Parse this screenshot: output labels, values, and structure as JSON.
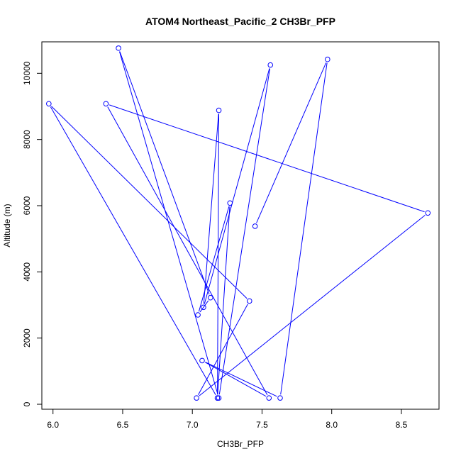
{
  "chart_data": {
    "type": "line",
    "title": "ATOM4 Northeast_Pacific_2 CH3Br_PFP",
    "xlabel": "CH3Br_PFP",
    "ylabel": "Altitude (m)",
    "xlim": [
      5.92,
      8.77
    ],
    "ylim": [
      -150,
      10950
    ],
    "xticks": [
      "6.0",
      "6.5",
      "7.0",
      "7.5",
      "8.0",
      "8.5"
    ],
    "yticks": [
      "0",
      "2000",
      "4000",
      "6000",
      "8000",
      "10000"
    ],
    "grid": false,
    "legend": "none",
    "color": "#0000ff",
    "series": [
      {
        "points": [
          [
            7.45,
            5380
          ],
          [
            7.97,
            10420
          ],
          [
            7.63,
            190
          ],
          [
            7.07,
            1320
          ],
          [
            7.55,
            190
          ],
          [
            6.38,
            9080
          ],
          [
            8.69,
            5780
          ],
          [
            7.03,
            190
          ],
          [
            7.41,
            3120
          ],
          [
            5.97,
            9080
          ],
          [
            7.18,
            190
          ],
          [
            7.27,
            6080
          ],
          [
            7.04,
            2700
          ],
          [
            7.13,
            3220
          ],
          [
            6.47,
            10760
          ],
          [
            7.19,
            190
          ],
          [
            7.56,
            10250
          ],
          [
            7.08,
            2930
          ],
          [
            7.19,
            8880
          ],
          [
            7.18,
            190
          ]
        ]
      }
    ]
  }
}
